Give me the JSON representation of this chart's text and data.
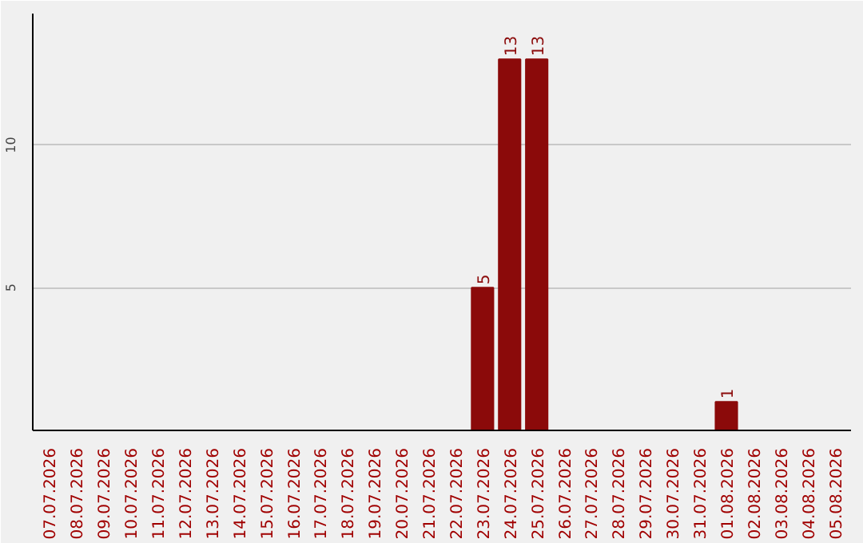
{
  "chart_data": {
    "type": "bar",
    "categories": [
      "07.07.2026",
      "08.07.2026",
      "09.07.2026",
      "10.07.2026",
      "11.07.2026",
      "12.07.2026",
      "13.07.2026",
      "14.07.2026",
      "15.07.2026",
      "16.07.2026",
      "17.07.2026",
      "18.07.2026",
      "19.07.2026",
      "20.07.2026",
      "21.07.2026",
      "22.07.2026",
      "23.07.2026",
      "24.07.2026",
      "25.07.2026",
      "26.07.2026",
      "27.07.2026",
      "28.07.2026",
      "29.07.2026",
      "30.07.2026",
      "31.07.2026",
      "01.08.2026",
      "02.08.2026",
      "03.08.2026",
      "04.08.2026",
      "05.08.2026"
    ],
    "values": [
      0,
      0,
      0,
      0,
      0,
      0,
      0,
      0,
      0,
      0,
      0,
      0,
      0,
      0,
      0,
      0,
      5,
      13,
      13,
      0,
      0,
      0,
      0,
      0,
      0,
      1,
      0,
      0,
      0,
      0
    ],
    "value_labels": [
      null,
      null,
      null,
      null,
      null,
      null,
      null,
      null,
      null,
      null,
      null,
      null,
      null,
      null,
      null,
      null,
      "5",
      "13",
      "13",
      null,
      null,
      null,
      null,
      null,
      null,
      "1",
      null,
      null,
      null,
      null
    ],
    "color": "#8b0a0a",
    "ylim": [
      0,
      14.6
    ],
    "yticks": [
      5,
      10
    ],
    "grid": "y"
  }
}
